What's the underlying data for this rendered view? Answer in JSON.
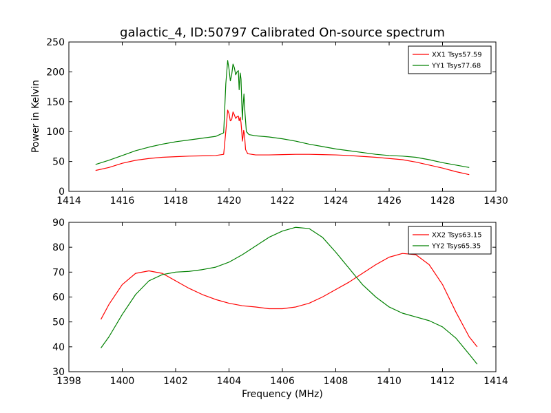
{
  "chart_data": [
    {
      "type": "line",
      "title": "galactic_4, ID:50797 Calibrated On-source spectrum",
      "xlabel": "",
      "ylabel": "Power in Kelvin",
      "xlim": [
        1414,
        1430
      ],
      "ylim": [
        0,
        250
      ],
      "xticks": [
        1414,
        1416,
        1418,
        1420,
        1422,
        1424,
        1426,
        1428,
        1430
      ],
      "yticks": [
        0,
        50,
        100,
        150,
        200,
        250
      ],
      "legend_placement": "top-right",
      "grid": false,
      "series": [
        {
          "name": "XX1 Tsys57.59",
          "color": "#ff0000",
          "points": [
            [
              1415.0,
              35
            ],
            [
              1415.5,
              40
            ],
            [
              1416.0,
              47
            ],
            [
              1416.5,
              52
            ],
            [
              1417.0,
              55
            ],
            [
              1417.5,
              57
            ],
            [
              1418.0,
              58
            ],
            [
              1418.5,
              59
            ],
            [
              1419.0,
              59.5
            ],
            [
              1419.5,
              60
            ],
            [
              1419.8,
              62
            ],
            [
              1419.9,
              110
            ],
            [
              1419.95,
              136
            ],
            [
              1420.0,
              130
            ],
            [
              1420.05,
              118
            ],
            [
              1420.1,
              120
            ],
            [
              1420.15,
              133
            ],
            [
              1420.2,
              128
            ],
            [
              1420.25,
              122
            ],
            [
              1420.3,
              125
            ],
            [
              1420.35,
              126
            ],
            [
              1420.38,
              118
            ],
            [
              1420.42,
              124
            ],
            [
              1420.45,
              115
            ],
            [
              1420.48,
              98
            ],
            [
              1420.5,
              84
            ],
            [
              1420.52,
              90
            ],
            [
              1420.55,
              102
            ],
            [
              1420.58,
              95
            ],
            [
              1420.62,
              70
            ],
            [
              1420.7,
              63
            ],
            [
              1421.0,
              61
            ],
            [
              1421.5,
              61
            ],
            [
              1422.0,
              61.5
            ],
            [
              1422.5,
              62
            ],
            [
              1423.0,
              62
            ],
            [
              1423.5,
              61.5
            ],
            [
              1424.0,
              61
            ],
            [
              1424.5,
              60
            ],
            [
              1425.0,
              58.5
            ],
            [
              1425.5,
              57
            ],
            [
              1426.0,
              55
            ],
            [
              1426.5,
              53
            ],
            [
              1427.0,
              49
            ],
            [
              1427.5,
              44
            ],
            [
              1428.0,
              39
            ],
            [
              1428.5,
              33
            ],
            [
              1429.0,
              28
            ]
          ]
        },
        {
          "name": "YY1 Tsys77.68",
          "color": "#008000",
          "points": [
            [
              1415.0,
              45
            ],
            [
              1415.5,
              52
            ],
            [
              1416.0,
              60
            ],
            [
              1416.5,
              68
            ],
            [
              1417.0,
              74
            ],
            [
              1417.5,
              79
            ],
            [
              1418.0,
              83
            ],
            [
              1418.5,
              86
            ],
            [
              1419.0,
              89
            ],
            [
              1419.5,
              92
            ],
            [
              1419.8,
              98
            ],
            [
              1419.88,
              180
            ],
            [
              1419.95,
              219
            ],
            [
              1420.0,
              205
            ],
            [
              1420.05,
              185
            ],
            [
              1420.1,
              195
            ],
            [
              1420.15,
              213
            ],
            [
              1420.2,
              207
            ],
            [
              1420.25,
              195
            ],
            [
              1420.3,
              200
            ],
            [
              1420.35,
              202
            ],
            [
              1420.38,
              170
            ],
            [
              1420.42,
              198
            ],
            [
              1420.45,
              188
            ],
            [
              1420.48,
              145
            ],
            [
              1420.5,
              120
            ],
            [
              1420.52,
              140
            ],
            [
              1420.56,
              163
            ],
            [
              1420.6,
              130
            ],
            [
              1420.65,
              100
            ],
            [
              1420.75,
              95
            ],
            [
              1421.0,
              93
            ],
            [
              1421.5,
              91
            ],
            [
              1422.0,
              88
            ],
            [
              1422.5,
              84
            ],
            [
              1423.0,
              79
            ],
            [
              1423.5,
              75
            ],
            [
              1424.0,
              71
            ],
            [
              1424.5,
              68
            ],
            [
              1425.0,
              65
            ],
            [
              1425.5,
              62
            ],
            [
              1426.0,
              60
            ],
            [
              1426.5,
              59
            ],
            [
              1427.0,
              57
            ],
            [
              1427.5,
              53
            ],
            [
              1428.0,
              48
            ],
            [
              1428.5,
              44
            ],
            [
              1429.0,
              40
            ]
          ]
        }
      ]
    },
    {
      "type": "line",
      "title": "",
      "xlabel": "Frequency (MHz)",
      "ylabel": "",
      "xlim": [
        1398,
        1414
      ],
      "ylim": [
        30,
        90
      ],
      "xticks": [
        1398,
        1400,
        1402,
        1404,
        1406,
        1408,
        1410,
        1412,
        1414
      ],
      "yticks": [
        30,
        40,
        50,
        60,
        70,
        80,
        90
      ],
      "legend_placement": "top-right",
      "grid": false,
      "series": [
        {
          "name": "XX2 Tsys63.15",
          "color": "#ff0000",
          "points": [
            [
              1399.2,
              51
            ],
            [
              1399.5,
              57
            ],
            [
              1400.0,
              65
            ],
            [
              1400.5,
              69.5
            ],
            [
              1401.0,
              70.5
            ],
            [
              1401.5,
              69.5
            ],
            [
              1402.0,
              66.5
            ],
            [
              1402.5,
              63.5
            ],
            [
              1403.0,
              61
            ],
            [
              1403.5,
              59
            ],
            [
              1404.0,
              57.5
            ],
            [
              1404.5,
              56.5
            ],
            [
              1405.0,
              56
            ],
            [
              1405.5,
              55.3
            ],
            [
              1406.0,
              55.3
            ],
            [
              1406.5,
              56
            ],
            [
              1407.0,
              57.5
            ],
            [
              1407.5,
              60
            ],
            [
              1408.0,
              63
            ],
            [
              1408.5,
              66
            ],
            [
              1409.0,
              69.5
            ],
            [
              1409.5,
              73
            ],
            [
              1410.0,
              76
            ],
            [
              1410.5,
              77.5
            ],
            [
              1411.0,
              77
            ],
            [
              1411.5,
              73
            ],
            [
              1412.0,
              65
            ],
            [
              1412.5,
              54
            ],
            [
              1413.0,
              44
            ],
            [
              1413.3,
              40
            ]
          ]
        },
        {
          "name": "YY2 Tsys65.35",
          "color": "#008000",
          "points": [
            [
              1399.2,
              39.5
            ],
            [
              1399.5,
              44
            ],
            [
              1400.0,
              53
            ],
            [
              1400.5,
              61
            ],
            [
              1401.0,
              66.5
            ],
            [
              1401.5,
              69
            ],
            [
              1402.0,
              70
            ],
            [
              1402.5,
              70.3
            ],
            [
              1403.0,
              71
            ],
            [
              1403.5,
              72
            ],
            [
              1404.0,
              74
            ],
            [
              1404.5,
              77
            ],
            [
              1405.0,
              80.5
            ],
            [
              1405.5,
              84
            ],
            [
              1406.0,
              86.5
            ],
            [
              1406.5,
              88
            ],
            [
              1407.0,
              87.5
            ],
            [
              1407.5,
              84
            ],
            [
              1408.0,
              78
            ],
            [
              1408.5,
              71.5
            ],
            [
              1409.0,
              65
            ],
            [
              1409.5,
              60
            ],
            [
              1410.0,
              56
            ],
            [
              1410.5,
              53.5
            ],
            [
              1411.0,
              52
            ],
            [
              1411.5,
              50.5
            ],
            [
              1412.0,
              48
            ],
            [
              1412.5,
              43.5
            ],
            [
              1413.0,
              37
            ],
            [
              1413.3,
              33
            ]
          ]
        }
      ]
    }
  ]
}
